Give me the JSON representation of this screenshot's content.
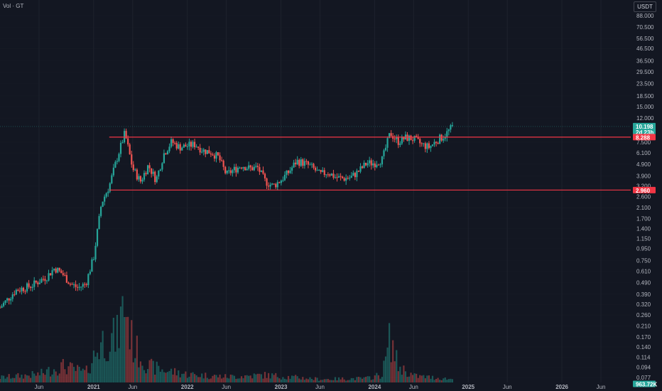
{
  "header": {
    "volume_label": "Vol · GT",
    "currency": "USDT"
  },
  "colors": {
    "background": "#131722",
    "up": "#26a69a",
    "down": "#ef5350",
    "level_line": "#f23645",
    "grid": "#1e222d"
  },
  "chart_data": {
    "type": "candlestick",
    "symbol": "GT",
    "quote_currency": "USDT",
    "y_scale": "log",
    "y_ticks": [
      "88.000",
      "70.500",
      "56.500",
      "46.500",
      "36.500",
      "29.500",
      "23.500",
      "18.500",
      "15.000",
      "12.000",
      "7.500",
      "6.100",
      "4.900",
      "3.900",
      "3.200",
      "2.600",
      "2.100",
      "1.700",
      "1.400",
      "1.150",
      "0.950",
      "0.750",
      "0.610",
      "0.490",
      "0.390",
      "0.320",
      "0.260",
      "0.210",
      "0.170",
      "0.140",
      "0.114",
      "0.094",
      "0.077"
    ],
    "x_ticks": [
      "Jun",
      "2021",
      "Jun",
      "2022",
      "Jun",
      "2023",
      "Jun",
      "2024",
      "Jun",
      "2025",
      "Jun",
      "2026",
      "Jun"
    ],
    "x_range": [
      "2020-01",
      "2026-08"
    ],
    "ylim": [
      0.07,
      110
    ],
    "current_price": {
      "value": "10.198",
      "countdown": "2d 23h"
    },
    "levels": [
      {
        "value": 8.288,
        "label": "8.288"
      },
      {
        "value": 2.96,
        "label": "2.960"
      }
    ],
    "volume_readout": "963.72K",
    "price_path": [
      [
        "2020-01",
        0.3
      ],
      [
        "2020-03",
        0.42
      ],
      [
        "2020-05",
        0.46
      ],
      [
        "2020-07",
        0.55
      ],
      [
        "2020-08",
        0.65
      ],
      [
        "2020-09",
        0.58
      ],
      [
        "2020-10",
        0.48
      ],
      [
        "2020-11",
        0.44
      ],
      [
        "2020-12",
        0.48
      ],
      [
        "2021-01",
        0.8
      ],
      [
        "2021-02",
        2.3
      ],
      [
        "2021-03",
        3.2
      ],
      [
        "2021-04",
        5.5
      ],
      [
        "2021-05",
        9.0
      ],
      [
        "2021-06",
        4.5
      ],
      [
        "2021-07",
        3.5
      ],
      [
        "2021-08",
        4.8
      ],
      [
        "2021-09",
        3.6
      ],
      [
        "2021-10",
        6.0
      ],
      [
        "2021-11",
        7.6
      ],
      [
        "2021-12",
        6.8
      ],
      [
        "2022-01",
        7.0
      ],
      [
        "2022-02",
        7.2
      ],
      [
        "2022-03",
        6.4
      ],
      [
        "2022-04",
        6.2
      ],
      [
        "2022-05",
        5.6
      ],
      [
        "2022-06",
        4.0
      ],
      [
        "2022-07",
        4.4
      ],
      [
        "2022-08",
        4.8
      ],
      [
        "2022-09",
        4.5
      ],
      [
        "2022-10",
        4.6
      ],
      [
        "2022-11",
        3.5
      ],
      [
        "2022-12",
        3.2
      ],
      [
        "2023-01",
        3.6
      ],
      [
        "2023-02",
        4.2
      ],
      [
        "2023-03",
        5.2
      ],
      [
        "2023-04",
        5.0
      ],
      [
        "2023-05",
        4.6
      ],
      [
        "2023-06",
        4.0
      ],
      [
        "2023-07",
        4.2
      ],
      [
        "2023-08",
        3.8
      ],
      [
        "2023-09",
        3.7
      ],
      [
        "2023-10",
        3.8
      ],
      [
        "2023-11",
        4.3
      ],
      [
        "2023-12",
        5.0
      ],
      [
        "2024-01",
        5.0
      ],
      [
        "2024-02",
        5.4
      ],
      [
        "2024-03",
        9.0
      ],
      [
        "2024-04",
        7.6
      ],
      [
        "2024-05",
        8.2
      ],
      [
        "2024-06",
        8.0
      ],
      [
        "2024-07",
        7.2
      ],
      [
        "2024-08",
        6.8
      ],
      [
        "2024-09",
        7.8
      ],
      [
        "2024-10",
        8.6
      ],
      [
        "2024-11",
        10.198
      ]
    ],
    "volume_path": [
      [
        "2020-01",
        0.06
      ],
      [
        "2020-06",
        0.1
      ],
      [
        "2020-09",
        0.2
      ],
      [
        "2020-12",
        0.12
      ],
      [
        "2021-02",
        0.5
      ],
      [
        "2021-04",
        0.55
      ],
      [
        "2021-05",
        1.0
      ],
      [
        "2021-06",
        0.45
      ],
      [
        "2021-08",
        0.2
      ],
      [
        "2021-10",
        0.15
      ],
      [
        "2022-01",
        0.1
      ],
      [
        "2022-06",
        0.07
      ],
      [
        "2022-11",
        0.09
      ],
      [
        "2023-06",
        0.04
      ],
      [
        "2023-12",
        0.05
      ],
      [
        "2024-02",
        0.1
      ],
      [
        "2024-03",
        0.55
      ],
      [
        "2024-04",
        0.2
      ],
      [
        "2024-06",
        0.08
      ],
      [
        "2024-11",
        0.04
      ]
    ]
  }
}
